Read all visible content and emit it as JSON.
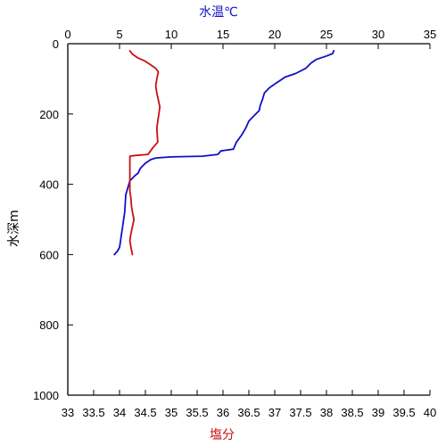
{
  "chart_data": {
    "type": "line",
    "title": "",
    "ylabel": "水深m",
    "y_axis": {
      "range": [
        0,
        1000
      ],
      "inverted": true,
      "ticks": [
        0,
        200,
        400,
        600,
        800,
        1000
      ]
    },
    "top_axis": {
      "label": "水温℃",
      "color": "#1010c8",
      "range": [
        0,
        35
      ],
      "ticks": [
        0,
        5,
        10,
        15,
        20,
        25,
        30,
        35
      ]
    },
    "bottom_axis": {
      "label": "塩分",
      "color": "#c81010",
      "range": [
        33,
        40
      ],
      "ticks": [
        33,
        33.5,
        34,
        34.5,
        35,
        35.5,
        36,
        36.5,
        37,
        37.5,
        38,
        38.5,
        39,
        39.5,
        40
      ],
      "tick_labels": [
        "33",
        "33.5",
        "34",
        "34.5",
        "35",
        "35.5",
        "36",
        "36.5",
        "37",
        "37.5",
        "38",
        "38.5",
        "39",
        "39.5",
        "40"
      ]
    },
    "grid": false,
    "legend": "none",
    "series": [
      {
        "axis": "top",
        "color": "#1010c8",
        "points": [
          [
            25.7,
            20
          ],
          [
            25.6,
            28
          ],
          [
            25.0,
            35
          ],
          [
            24.0,
            45
          ],
          [
            23.5,
            55
          ],
          [
            23.0,
            70
          ],
          [
            22.0,
            85
          ],
          [
            21.0,
            95
          ],
          [
            20.5,
            105
          ],
          [
            20.0,
            115
          ],
          [
            19.5,
            125
          ],
          [
            19.0,
            140
          ],
          [
            18.8,
            160
          ],
          [
            18.6,
            175
          ],
          [
            18.5,
            190
          ],
          [
            18.0,
            205
          ],
          [
            17.5,
            220
          ],
          [
            17.2,
            240
          ],
          [
            16.8,
            260
          ],
          [
            16.3,
            280
          ],
          [
            16.0,
            300
          ],
          [
            14.8,
            305
          ],
          [
            14.5,
            315
          ],
          [
            13.0,
            320
          ],
          [
            10.0,
            322
          ],
          [
            8.5,
            325
          ],
          [
            8.0,
            330
          ],
          [
            7.5,
            340
          ],
          [
            7.0,
            355
          ],
          [
            6.8,
            368
          ],
          [
            6.5,
            375
          ],
          [
            6.0,
            390
          ],
          [
            5.8,
            410
          ],
          [
            5.6,
            430
          ],
          [
            5.5,
            480
          ],
          [
            5.4,
            500
          ],
          [
            5.3,
            520
          ],
          [
            5.2,
            540
          ],
          [
            5.1,
            560
          ],
          [
            5.0,
            580
          ],
          [
            4.8,
            590
          ],
          [
            4.5,
            600
          ]
        ]
      },
      {
        "axis": "bottom",
        "color": "#c81010",
        "points": [
          [
            34.2,
            20
          ],
          [
            34.25,
            30
          ],
          [
            34.35,
            40
          ],
          [
            34.5,
            50
          ],
          [
            34.6,
            60
          ],
          [
            34.7,
            70
          ],
          [
            34.75,
            80
          ],
          [
            34.72,
            100
          ],
          [
            34.7,
            120
          ],
          [
            34.72,
            140
          ],
          [
            34.75,
            160
          ],
          [
            34.78,
            180
          ],
          [
            34.76,
            200
          ],
          [
            34.74,
            220
          ],
          [
            34.72,
            240
          ],
          [
            34.73,
            260
          ],
          [
            34.74,
            280
          ],
          [
            34.65,
            295
          ],
          [
            34.6,
            305
          ],
          [
            34.55,
            315
          ],
          [
            34.3,
            318
          ],
          [
            34.2,
            320
          ],
          [
            34.2,
            340
          ],
          [
            34.2,
            360
          ],
          [
            34.2,
            380
          ],
          [
            34.2,
            400
          ],
          [
            34.2,
            420
          ],
          [
            34.22,
            440
          ],
          [
            34.23,
            460
          ],
          [
            34.25,
            480
          ],
          [
            34.28,
            500
          ],
          [
            34.25,
            520
          ],
          [
            34.22,
            540
          ],
          [
            34.2,
            560
          ],
          [
            34.22,
            580
          ],
          [
            34.25,
            600
          ]
        ]
      }
    ]
  }
}
